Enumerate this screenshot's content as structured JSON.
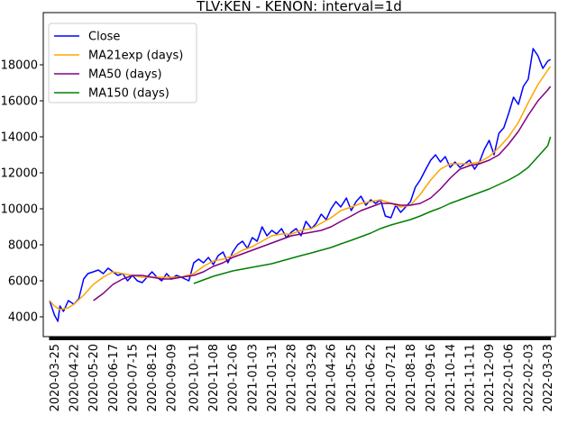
{
  "chart_data": {
    "type": "line",
    "title": "TLV:KEN - KENON: interval=1d",
    "xlabel": "",
    "ylabel": "",
    "ylim": [
      2900,
      20900
    ],
    "yticks": [
      4000,
      6000,
      8000,
      10000,
      12000,
      14000,
      16000,
      18000
    ],
    "ytick_labels": [
      "4000",
      "6000",
      "8000",
      "10000",
      "12000",
      "14000",
      "16000",
      "18000"
    ],
    "xlim": [
      "2020-03-09",
      "2022-03-14"
    ],
    "xtick_labels": [
      "2020-03-25",
      "2020-04-22",
      "2020-05-20",
      "2020-06-17",
      "2020-07-15",
      "2020-08-12",
      "2020-09-09",
      "2020-10-11",
      "2020-11-08",
      "2020-12-06",
      "2021-01-03",
      "2021-01-31",
      "2021-02-28",
      "2021-03-29",
      "2021-04-26",
      "2021-05-25",
      "2021-06-22",
      "2021-07-21",
      "2021-08-18",
      "2021-09-16",
      "2021-10-14",
      "2021-11-11",
      "2021-12-09",
      "2022-01-06",
      "2022-02-03",
      "2022-03-03"
    ],
    "grid": false,
    "legend_position": "upper-left",
    "series": [
      {
        "name": "Close",
        "color": "#0000ff",
        "x": [
          "2020-03-18",
          "2020-03-25",
          "2020-03-30",
          "2020-04-02",
          "2020-04-07",
          "2020-04-14",
          "2020-04-22",
          "2020-04-29",
          "2020-05-06",
          "2020-05-12",
          "2020-05-20",
          "2020-05-27",
          "2020-06-03",
          "2020-06-10",
          "2020-06-17",
          "2020-06-24",
          "2020-07-01",
          "2020-07-08",
          "2020-07-15",
          "2020-07-22",
          "2020-07-29",
          "2020-08-05",
          "2020-08-12",
          "2020-08-19",
          "2020-08-26",
          "2020-09-02",
          "2020-09-09",
          "2020-09-16",
          "2020-09-23",
          "2020-10-04",
          "2020-10-11",
          "2020-10-18",
          "2020-10-25",
          "2020-11-01",
          "2020-11-08",
          "2020-11-15",
          "2020-11-22",
          "2020-11-29",
          "2020-12-06",
          "2020-12-13",
          "2020-12-20",
          "2020-12-27",
          "2021-01-03",
          "2021-01-10",
          "2021-01-17",
          "2021-01-24",
          "2021-01-31",
          "2021-02-07",
          "2021-02-14",
          "2021-02-21",
          "2021-02-28",
          "2021-03-07",
          "2021-03-14",
          "2021-03-21",
          "2021-03-29",
          "2021-04-05",
          "2021-04-12",
          "2021-04-19",
          "2021-04-26",
          "2021-05-03",
          "2021-05-10",
          "2021-05-18",
          "2021-05-25",
          "2021-06-01",
          "2021-06-08",
          "2021-06-15",
          "2021-06-22",
          "2021-06-29",
          "2021-07-06",
          "2021-07-13",
          "2021-07-21",
          "2021-07-28",
          "2021-08-04",
          "2021-08-11",
          "2021-08-18",
          "2021-08-25",
          "2021-09-01",
          "2021-09-09",
          "2021-09-16",
          "2021-09-23",
          "2021-09-30",
          "2021-10-07",
          "2021-10-14",
          "2021-10-21",
          "2021-10-28",
          "2021-11-04",
          "2021-11-11",
          "2021-11-18",
          "2021-11-25",
          "2021-12-02",
          "2021-12-09",
          "2021-12-16",
          "2021-12-23",
          "2021-12-30",
          "2022-01-06",
          "2022-01-13",
          "2022-01-20",
          "2022-01-27",
          "2022-02-03",
          "2022-02-10",
          "2022-02-17",
          "2022-02-24",
          "2022-03-03",
          "2022-03-07"
        ],
        "values": [
          4900,
          4100,
          3750,
          4600,
          4300,
          4900,
          4700,
          5000,
          6100,
          6400,
          6500,
          6600,
          6400,
          6700,
          6500,
          6300,
          6400,
          6000,
          6300,
          6000,
          5900,
          6200,
          6500,
          6200,
          6000,
          6400,
          6100,
          6300,
          6200,
          6000,
          7000,
          7200,
          7000,
          7300,
          6900,
          7400,
          7600,
          7000,
          7600,
          8000,
          8200,
          7800,
          8400,
          8200,
          9000,
          8500,
          8800,
          8600,
          8900,
          8400,
          8700,
          8900,
          8500,
          9300,
          8900,
          9200,
          9700,
          9400,
          10000,
          10400,
          10100,
          10600,
          9900,
          10400,
          10700,
          10200,
          10500,
          10300,
          10500,
          9600,
          9500,
          10200,
          9800,
          10100,
          10400,
          11200,
          11600,
          12200,
          12700,
          13000,
          12600,
          12900,
          12300,
          12600,
          12300,
          12500,
          12700,
          12200,
          12600,
          13300,
          13800,
          13000,
          14200,
          14500,
          15300,
          16200,
          15800,
          16800,
          17200,
          18900,
          18500,
          17800,
          18200,
          18300
        ]
      },
      {
        "name": "MA21exp (days)",
        "color": "#ffa500",
        "x": [
          "2020-03-18",
          "2020-03-25",
          "2020-04-02",
          "2020-04-14",
          "2020-04-22",
          "2020-05-06",
          "2020-05-20",
          "2020-06-03",
          "2020-06-17",
          "2020-07-01",
          "2020-07-15",
          "2020-07-29",
          "2020-08-12",
          "2020-08-26",
          "2020-09-09",
          "2020-09-23",
          "2020-10-11",
          "2020-10-25",
          "2020-11-08",
          "2020-11-22",
          "2020-12-06",
          "2020-12-20",
          "2021-01-03",
          "2021-01-17",
          "2021-01-31",
          "2021-02-14",
          "2021-02-28",
          "2021-03-14",
          "2021-03-29",
          "2021-04-12",
          "2021-04-26",
          "2021-05-10",
          "2021-05-25",
          "2021-06-08",
          "2021-06-22",
          "2021-07-06",
          "2021-07-21",
          "2021-08-04",
          "2021-08-18",
          "2021-09-01",
          "2021-09-16",
          "2021-09-30",
          "2021-10-14",
          "2021-10-28",
          "2021-11-11",
          "2021-11-25",
          "2021-12-09",
          "2021-12-23",
          "2022-01-06",
          "2022-01-20",
          "2022-02-03",
          "2022-02-17",
          "2022-03-03",
          "2022-03-07"
        ],
        "values": [
          4900,
          4600,
          4400,
          4500,
          4700,
          5200,
          5800,
          6200,
          6500,
          6400,
          6300,
          6200,
          6200,
          6200,
          6200,
          6200,
          6400,
          6800,
          7100,
          7200,
          7400,
          7700,
          7900,
          8200,
          8500,
          8600,
          8600,
          8800,
          8900,
          9200,
          9500,
          9900,
          10100,
          10300,
          10400,
          10500,
          10300,
          10100,
          10200,
          10800,
          11600,
          12200,
          12500,
          12500,
          12500,
          12600,
          12900,
          13400,
          14000,
          14800,
          15900,
          16900,
          17700,
          17900
        ]
      },
      {
        "name": "MA50 (days)",
        "color": "#800080",
        "x": [
          "2020-05-20",
          "2020-06-03",
          "2020-06-17",
          "2020-07-01",
          "2020-07-15",
          "2020-07-29",
          "2020-08-12",
          "2020-08-26",
          "2020-09-09",
          "2020-09-23",
          "2020-10-11",
          "2020-10-25",
          "2020-11-08",
          "2020-11-22",
          "2020-12-06",
          "2020-12-20",
          "2021-01-03",
          "2021-01-17",
          "2021-01-31",
          "2021-02-14",
          "2021-02-28",
          "2021-03-14",
          "2021-03-29",
          "2021-04-12",
          "2021-04-26",
          "2021-05-10",
          "2021-05-25",
          "2021-06-08",
          "2021-06-22",
          "2021-07-06",
          "2021-07-21",
          "2021-08-04",
          "2021-08-18",
          "2021-09-01",
          "2021-09-16",
          "2021-09-30",
          "2021-10-14",
          "2021-10-28",
          "2021-11-11",
          "2021-11-25",
          "2021-12-09",
          "2021-12-23",
          "2022-01-06",
          "2022-01-20",
          "2022-02-03",
          "2022-02-17",
          "2022-03-03",
          "2022-03-07"
        ],
        "values": [
          4900,
          5300,
          5800,
          6100,
          6300,
          6300,
          6200,
          6100,
          6100,
          6200,
          6300,
          6500,
          6800,
          7000,
          7300,
          7500,
          7700,
          7900,
          8100,
          8300,
          8500,
          8600,
          8700,
          8800,
          9000,
          9300,
          9600,
          9900,
          10100,
          10300,
          10300,
          10200,
          10200,
          10300,
          10600,
          11100,
          11700,
          12200,
          12400,
          12500,
          12700,
          13000,
          13600,
          14300,
          15200,
          16000,
          16600,
          16800
        ]
      },
      {
        "name": "MA150 (days)",
        "color": "#008000",
        "x": [
          "2020-10-11",
          "2020-10-25",
          "2020-11-08",
          "2020-11-22",
          "2020-12-06",
          "2020-12-20",
          "2021-01-03",
          "2021-01-17",
          "2021-01-31",
          "2021-02-14",
          "2021-02-28",
          "2021-03-14",
          "2021-03-29",
          "2021-04-12",
          "2021-04-26",
          "2021-05-10",
          "2021-05-25",
          "2021-06-08",
          "2021-06-22",
          "2021-07-06",
          "2021-07-21",
          "2021-08-04",
          "2021-08-18",
          "2021-09-01",
          "2021-09-16",
          "2021-09-30",
          "2021-10-14",
          "2021-10-28",
          "2021-11-11",
          "2021-11-25",
          "2021-12-09",
          "2021-12-23",
          "2022-01-06",
          "2022-01-20",
          "2022-02-03",
          "2022-02-17",
          "2022-03-03",
          "2022-03-07"
        ],
        "values": [
          5850,
          6050,
          6250,
          6400,
          6550,
          6650,
          6750,
          6850,
          6950,
          7100,
          7250,
          7400,
          7550,
          7700,
          7850,
          8050,
          8250,
          8450,
          8650,
          8900,
          9100,
          9250,
          9400,
          9600,
          9850,
          10050,
          10300,
          10500,
          10700,
          10900,
          11100,
          11350,
          11600,
          11900,
          12300,
          12900,
          13500,
          14000
        ]
      }
    ]
  }
}
